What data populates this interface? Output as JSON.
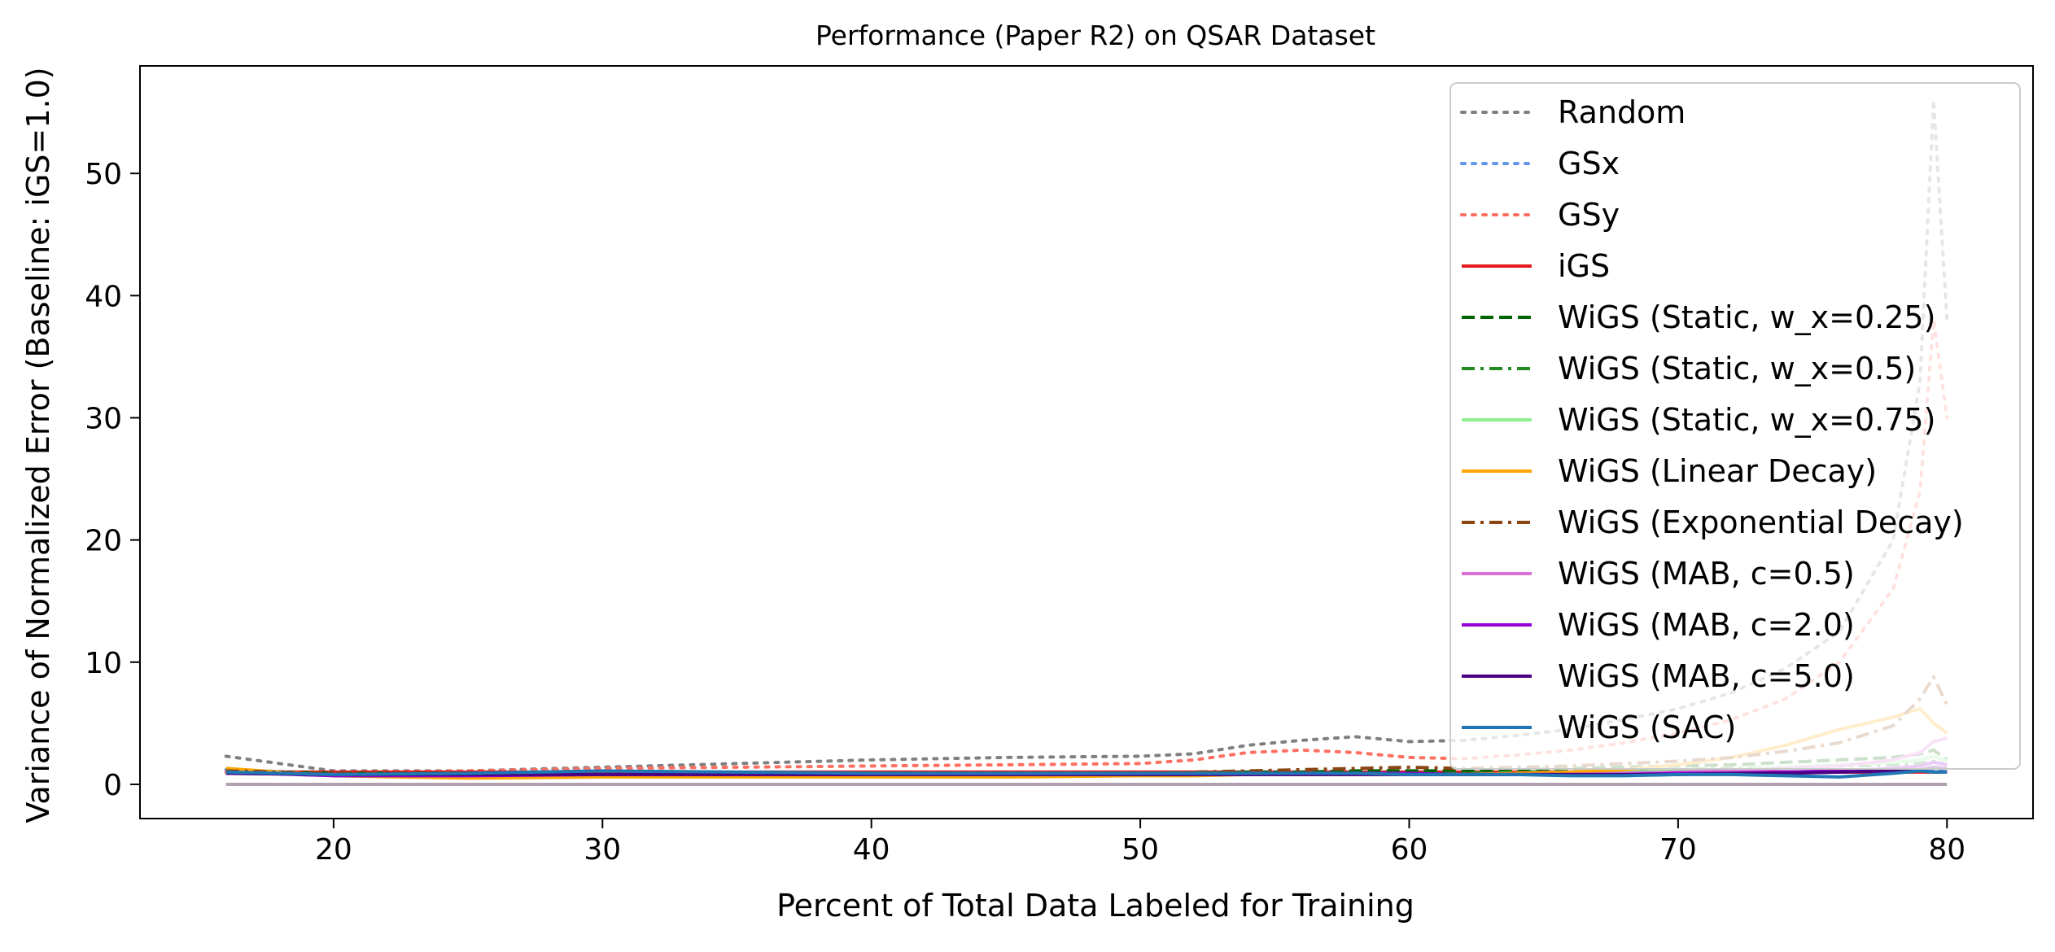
{
  "chart_data": {
    "type": "line",
    "title": "Performance (Paper R2) on QSAR Dataset",
    "xlabel": "Percent of Total Data Labeled for Training",
    "ylabel": "Variance of Normalized Error (Baseline: iGS=1.0)",
    "xlim": [
      12.8,
      83.2
    ],
    "ylim": [
      -2.8,
      58.8
    ],
    "xticks": [
      20,
      30,
      40,
      50,
      60,
      70,
      80
    ],
    "yticks": [
      0,
      10,
      20,
      30,
      40,
      50
    ],
    "grid": false,
    "legend_position": "top-right",
    "x": [
      16,
      20,
      25,
      30,
      35,
      40,
      45,
      50,
      52,
      54,
      56,
      58,
      60,
      62,
      64,
      66,
      68,
      70,
      72,
      74,
      76,
      78,
      79,
      79.5,
      80
    ],
    "series": [
      {
        "name": "Random",
        "color": "#808080",
        "style": "dotted",
        "opacity": 1.0,
        "values": [
          2.3,
          1.1,
          1.1,
          1.4,
          1.7,
          2.0,
          2.2,
          2.3,
          2.5,
          3.2,
          3.6,
          3.9,
          3.5,
          3.6,
          4.0,
          4.5,
          5.3,
          6.2,
          7.5,
          9.5,
          12.5,
          20.0,
          33.0,
          56.0,
          38.0
        ]
      },
      {
        "name": "GSx",
        "color": "#6495ED",
        "style": "dotted",
        "opacity": 1.0,
        "values": [
          1.2,
          0.9,
          0.9,
          0.9,
          0.9,
          0.9,
          0.9,
          0.9,
          0.9,
          0.9,
          0.9,
          0.9,
          0.9,
          0.9,
          0.9,
          0.9,
          0.9,
          0.9,
          0.9,
          0.9,
          1.0,
          1.0,
          1.1,
          1.2,
          1.1
        ]
      },
      {
        "name": "GSy",
        "color": "#FF6F61",
        "style": "dotted",
        "opacity": 1.0,
        "values": [
          1.0,
          1.0,
          1.1,
          1.3,
          1.4,
          1.5,
          1.6,
          1.7,
          2.0,
          2.6,
          2.8,
          2.6,
          2.2,
          2.1,
          2.4,
          2.8,
          3.4,
          4.2,
          5.3,
          7.0,
          10.0,
          16.0,
          24.0,
          38.0,
          30.0
        ]
      },
      {
        "name": "iGS",
        "color": "#E41A1C",
        "style": "solid",
        "opacity": 1.0,
        "values": [
          1.0,
          1.0,
          1.0,
          1.0,
          1.0,
          1.0,
          1.0,
          1.0,
          1.0,
          1.0,
          1.0,
          1.0,
          1.0,
          1.0,
          1.0,
          1.0,
          1.0,
          1.0,
          1.0,
          1.0,
          1.0,
          1.0,
          1.0,
          1.0,
          1.0
        ]
      },
      {
        "name": "WiGS (Static, w_x=0.25)",
        "color": "#006400",
        "style": "dashed",
        "opacity": 1.0,
        "values": [
          1.1,
          0.9,
          0.9,
          0.9,
          0.9,
          0.9,
          0.9,
          0.9,
          0.9,
          1.0,
          1.0,
          1.1,
          1.1,
          1.1,
          1.2,
          1.3,
          1.4,
          1.5,
          1.6,
          1.8,
          2.0,
          2.2,
          2.5,
          2.8,
          2.0
        ]
      },
      {
        "name": "WiGS (Static, w_x=0.5)",
        "color": "#228B22",
        "style": "dashdot",
        "opacity": 1.0,
        "values": [
          1.0,
          0.8,
          0.8,
          0.8,
          0.8,
          0.8,
          0.8,
          0.8,
          0.8,
          0.8,
          0.9,
          0.9,
          0.9,
          0.9,
          1.0,
          1.0,
          1.1,
          1.2,
          1.3,
          1.4,
          1.5,
          1.6,
          1.7,
          1.9,
          1.6
        ]
      },
      {
        "name": "WiGS (Static, w_x=0.75)",
        "color": "#90EE90",
        "style": "solid",
        "opacity": 1.0,
        "values": [
          0.9,
          0.8,
          0.8,
          0.8,
          0.8,
          0.8,
          0.8,
          0.8,
          0.8,
          0.8,
          0.8,
          0.8,
          0.8,
          0.8,
          0.9,
          0.9,
          1.0,
          1.1,
          1.2,
          1.4,
          1.6,
          1.8,
          2.0,
          2.3,
          1.9
        ]
      },
      {
        "name": "WiGS (Linear Decay)",
        "color": "#FFA500",
        "style": "solid",
        "opacity": 1.0,
        "values": [
          1.3,
          0.7,
          0.5,
          0.6,
          0.6,
          0.6,
          0.6,
          0.7,
          0.7,
          0.8,
          0.8,
          0.8,
          0.8,
          0.8,
          0.9,
          1.0,
          1.2,
          1.6,
          2.2,
          3.2,
          4.5,
          5.5,
          6.2,
          5.0,
          4.2
        ]
      },
      {
        "name": "WiGS (Exponential Decay)",
        "color": "#8B4513",
        "style": "dashdot",
        "opacity": 1.0,
        "values": [
          1.1,
          0.9,
          0.9,
          0.9,
          0.9,
          0.9,
          0.9,
          0.9,
          1.0,
          1.1,
          1.2,
          1.3,
          1.4,
          1.3,
          1.4,
          1.5,
          1.7,
          1.9,
          2.2,
          2.7,
          3.4,
          4.8,
          7.0,
          8.8,
          6.5
        ]
      },
      {
        "name": "WiGS (MAB, c=0.5)",
        "color": "#DA70D6",
        "style": "solid",
        "opacity": 1.0,
        "values": [
          0.9,
          0.8,
          0.8,
          0.8,
          0.8,
          0.8,
          0.8,
          0.8,
          0.8,
          0.8,
          0.8,
          0.8,
          0.8,
          0.8,
          0.8,
          0.8,
          0.9,
          1.0,
          1.1,
          1.3,
          1.5,
          2.0,
          2.6,
          3.5,
          3.8
        ]
      },
      {
        "name": "WiGS (MAB, c=2.0)",
        "color": "#9400D3",
        "style": "solid",
        "opacity": 1.0,
        "values": [
          1.0,
          0.7,
          0.7,
          0.8,
          0.8,
          0.8,
          0.8,
          0.8,
          0.8,
          0.9,
          0.9,
          0.9,
          0.9,
          0.8,
          0.8,
          0.8,
          0.8,
          0.9,
          0.9,
          1.0,
          1.1,
          1.3,
          1.5,
          1.8,
          1.6
        ]
      },
      {
        "name": "WiGS (MAB, c=5.0)",
        "color": "#4B0082",
        "style": "solid",
        "opacity": 1.0,
        "values": [
          0.9,
          0.8,
          0.8,
          0.8,
          0.8,
          0.8,
          0.8,
          0.8,
          0.8,
          0.8,
          0.8,
          0.8,
          0.8,
          0.8,
          0.8,
          0.8,
          0.8,
          0.8,
          0.9,
          0.9,
          1.0,
          1.1,
          1.2,
          1.4,
          1.3
        ]
      },
      {
        "name": "WiGS (SAC)",
        "color": "#1F77B4",
        "style": "solid",
        "opacity": 1.0,
        "values": [
          1.0,
          0.8,
          0.9,
          1.1,
          1.0,
          0.9,
          0.9,
          0.9,
          0.9,
          0.9,
          0.9,
          0.9,
          0.8,
          0.8,
          0.8,
          0.7,
          0.7,
          0.8,
          0.8,
          0.7,
          0.6,
          0.9,
          1.1,
          1.0,
          1.0
        ]
      },
      {
        "name": "",
        "color": "#B0A0B0",
        "style": "solid",
        "opacity": 1.0,
        "values": [
          0,
          0,
          0,
          0,
          0,
          0,
          0,
          0,
          0,
          0,
          0,
          0,
          0,
          0,
          0,
          0,
          0,
          0,
          0,
          0,
          0,
          0,
          0,
          0,
          0
        ]
      }
    ]
  }
}
